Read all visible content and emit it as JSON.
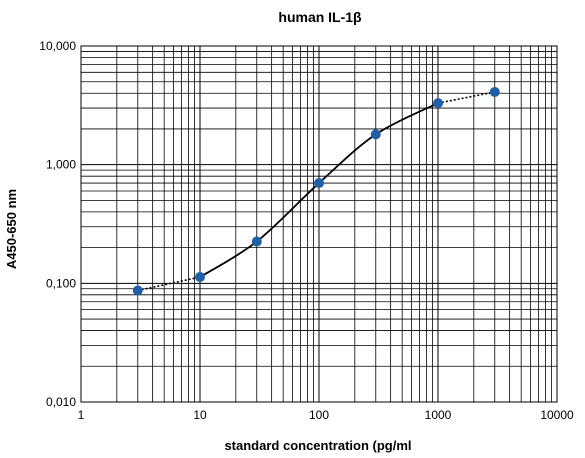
{
  "chart_data": {
    "type": "line",
    "title": "human IL-1β",
    "xlabel": "standard concentration (pg/ml",
    "ylabel": "A450-650 nm",
    "x_scale": "log",
    "y_scale": "log",
    "xlim": [
      1,
      10000
    ],
    "ylim": [
      0.01,
      10
    ],
    "x_ticks": [
      {
        "value": 1,
        "label": "1"
      },
      {
        "value": 10,
        "label": "10"
      },
      {
        "value": 100,
        "label": "100"
      },
      {
        "value": 1000,
        "label": "1000"
      },
      {
        "value": 10000,
        "label": "10000"
      }
    ],
    "y_ticks": [
      {
        "value": 0.01,
        "label": "0,010"
      },
      {
        "value": 0.1,
        "label": "0,100"
      },
      {
        "value": 1,
        "label": "1,000"
      },
      {
        "value": 10,
        "label": "10,000"
      }
    ],
    "grid": true,
    "series": [
      {
        "x": [
          3,
          10,
          30,
          100,
          300,
          1000,
          3000
        ],
        "y": [
          0.087,
          0.113,
          0.225,
          0.7,
          1.8,
          3.3,
          4.1
        ],
        "marker_color": "#1f5fa8",
        "line_color": "#000000"
      }
    ]
  }
}
